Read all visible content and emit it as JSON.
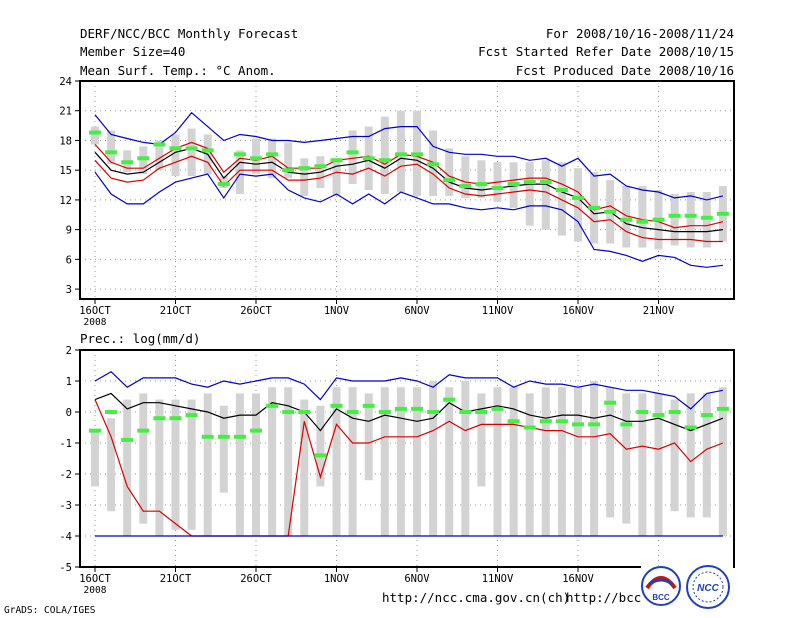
{
  "header": {
    "title": "DERF/NCC/BCC Monthly Forecast",
    "member_size": "Member Size=40",
    "variable": "Mean Surf. Temp.: °C Anom.",
    "period": "For 2008/10/16-2008/11/24",
    "start_date": "Fcst Started Refer Date 2008/10/15",
    "produced_date": "Fcst Produced Date 2008/10/16"
  },
  "footer": {
    "grads": "GrADS: COLA/IGES",
    "url_ncc": "http://ncc.cma.gov.cn(ch)",
    "url_bcc": "http://bcc.cma.gov.cn",
    "logo_bcc": "BCC",
    "logo_ncc": "NCC"
  },
  "colors": {
    "bar": "#d3d3d3",
    "mean": "#000000",
    "envelope_outer": "#0000cc",
    "envelope_inner": "#dd0000",
    "marker": "#44ee44"
  },
  "chart_data": [
    {
      "type": "line",
      "title": "",
      "ylabel": "Mean Surf. Temp.: °C Anom.",
      "ylim": [
        2,
        24
      ],
      "yticks": [
        "24",
        "21",
        "18",
        "15",
        "12",
        "9",
        "6",
        "3"
      ],
      "ytick_values": [
        24,
        21,
        18,
        15,
        12,
        9,
        6,
        3
      ],
      "x_labels": [
        "16OCT",
        "21OCT",
        "26OCT",
        "1NOV",
        "6NOV",
        "11NOV",
        "16NOV",
        "21NOV"
      ],
      "x_label_days": [
        1,
        6,
        11,
        16,
        21,
        26,
        31,
        36
      ],
      "x_sub_label": "2008",
      "days": 40,
      "bar_low": [
        17.6,
        15.6,
        14.8,
        14.6,
        15.0,
        14.4,
        14.4,
        14.6,
        13.2,
        12.6,
        14.6,
        14.2,
        14.2,
        12.4,
        13.2,
        12.4,
        13.6,
        13.0,
        12.6,
        12.8,
        12.4,
        12.4,
        12.4,
        12.2,
        12.2,
        11.8,
        11.2,
        9.4,
        9.0,
        8.4,
        7.8,
        7.6,
        7.6,
        7.2,
        7.2,
        7.0,
        7.4,
        7.2,
        7.2,
        7.8
      ],
      "bar_high": [
        19.4,
        19.0,
        17.0,
        17.4,
        18.0,
        18.6,
        19.2,
        18.6,
        14.4,
        17.0,
        18.2,
        18.2,
        17.8,
        16.2,
        16.4,
        16.2,
        19.0,
        19.4,
        20.4,
        21.0,
        21.0,
        19.0,
        17.2,
        16.4,
        16.0,
        15.8,
        15.8,
        15.8,
        16.0,
        15.8,
        15.2,
        14.8,
        14.0,
        13.4,
        13.4,
        13.0,
        12.6,
        12.8,
        12.8,
        13.4
      ],
      "marker": [
        18.8,
        16.8,
        15.8,
        16.2,
        17.6,
        17.2,
        17.2,
        17.0,
        13.6,
        16.6,
        16.2,
        16.6,
        15.0,
        15.2,
        15.4,
        16.0,
        16.8,
        16.2,
        16.0,
        16.6,
        16.6,
        15.6,
        14.0,
        13.4,
        13.6,
        13.2,
        13.6,
        13.8,
        13.8,
        13.0,
        12.2,
        11.2,
        10.8,
        10.0,
        9.8,
        10.0,
        10.4,
        10.4,
        10.2,
        10.6
      ],
      "series": [
        {
          "name": "envelope_max",
          "color": "#0000cc",
          "values": [
            20.6,
            18.6,
            18.2,
            17.8,
            17.6,
            18.8,
            20.8,
            19.4,
            18.0,
            18.6,
            18.4,
            18.0,
            18.0,
            17.8,
            18.0,
            18.2,
            18.4,
            18.4,
            19.2,
            19.4,
            19.4,
            17.4,
            16.8,
            16.6,
            16.6,
            16.4,
            16.4,
            16.0,
            16.2,
            15.4,
            16.2,
            14.4,
            14.6,
            13.4,
            13.0,
            12.8,
            12.2,
            12.4,
            12.0,
            12.4
          ]
        },
        {
          "name": "p75",
          "color": "#dd0000",
          "values": [
            17.6,
            15.8,
            15.2,
            15.2,
            16.2,
            17.2,
            17.8,
            17.2,
            14.8,
            16.2,
            16.0,
            16.4,
            15.2,
            15.2,
            15.2,
            16.0,
            16.2,
            16.4,
            15.6,
            16.6,
            16.4,
            15.8,
            14.4,
            13.8,
            13.6,
            13.8,
            14.0,
            14.2,
            14.2,
            13.6,
            12.8,
            11.0,
            11.4,
            10.4,
            10.0,
            9.8,
            9.2,
            9.4,
            9.4,
            9.8
          ]
        },
        {
          "name": "mean",
          "color": "#000000",
          "values": [
            16.8,
            15.0,
            14.6,
            14.8,
            15.8,
            16.8,
            17.2,
            16.6,
            14.2,
            15.8,
            15.6,
            15.8,
            14.8,
            14.6,
            14.8,
            15.4,
            15.6,
            16.0,
            15.2,
            16.2,
            16.0,
            15.2,
            13.8,
            13.2,
            13.0,
            13.2,
            13.4,
            13.6,
            13.6,
            12.8,
            12.2,
            10.6,
            10.8,
            9.6,
            9.2,
            9.0,
            8.8,
            8.8,
            8.8,
            9.0
          ]
        },
        {
          "name": "p25",
          "color": "#dd0000",
          "values": [
            16.0,
            14.2,
            13.8,
            14.0,
            15.2,
            15.8,
            16.4,
            15.8,
            13.4,
            15.0,
            15.0,
            15.0,
            14.0,
            14.0,
            14.2,
            14.8,
            14.6,
            15.2,
            14.4,
            15.4,
            15.6,
            14.6,
            13.2,
            12.6,
            12.4,
            12.6,
            12.8,
            13.0,
            12.8,
            12.0,
            11.2,
            9.8,
            10.0,
            8.8,
            8.2,
            8.0,
            8.0,
            8.0,
            7.8,
            7.8
          ]
        },
        {
          "name": "envelope_min",
          "color": "#0000cc",
          "values": [
            14.8,
            12.6,
            11.6,
            11.6,
            12.8,
            13.8,
            14.2,
            14.6,
            12.2,
            14.6,
            14.4,
            14.6,
            13.0,
            12.2,
            11.8,
            12.6,
            11.6,
            12.6,
            11.6,
            12.8,
            12.2,
            11.6,
            11.6,
            11.2,
            11.0,
            11.2,
            11.0,
            11.4,
            11.4,
            11.0,
            9.8,
            7.0,
            6.8,
            6.4,
            5.8,
            6.4,
            6.2,
            5.4,
            5.2,
            5.4
          ]
        }
      ]
    },
    {
      "type": "line",
      "title": "Prec.: log(mm/d)",
      "ylabel": "Prec.: log(mm/d)",
      "ylim": [
        -5,
        2
      ],
      "yticks": [
        "2",
        "1",
        "0",
        "-1",
        "-2",
        "-3",
        "-4",
        "-5"
      ],
      "ytick_values": [
        2,
        1,
        0,
        -1,
        -2,
        -3,
        -4,
        -5
      ],
      "x_labels": [
        "16OCT",
        "21OCT",
        "26OCT",
        "1NOV",
        "6NOV",
        "11NOV",
        "16NOV",
        "21NOV"
      ],
      "x_label_days": [
        1,
        6,
        11,
        16,
        21,
        26,
        31,
        36
      ],
      "x_sub_label": "2008",
      "days": 40,
      "bar_low": [
        -2.4,
        -3.2,
        -4.0,
        -3.6,
        -4.0,
        -3.8,
        -3.8,
        -4.0,
        -2.6,
        -4.0,
        -4.0,
        -4.0,
        -4.0,
        -4.0,
        -2.4,
        -4.0,
        -4.0,
        -2.2,
        -4.0,
        -4.0,
        -4.0,
        -4.0,
        -4.0,
        -4.0,
        -2.4,
        -4.0,
        -4.0,
        -4.0,
        -4.0,
        -4.0,
        -4.0,
        -4.0,
        -3.4,
        -3.6,
        -4.0,
        -4.0,
        -3.2,
        -3.4,
        -3.4,
        -4.0
      ],
      "bar_high": [
        -0.6,
        -0.2,
        0.4,
        0.6,
        0.4,
        0.4,
        0.4,
        0.6,
        0.2,
        0.6,
        0.6,
        0.8,
        0.8,
        0.4,
        0.2,
        0.8,
        0.8,
        0.6,
        0.8,
        0.8,
        0.8,
        1.0,
        0.8,
        1.0,
        0.6,
        0.8,
        0.8,
        0.6,
        0.8,
        0.8,
        0.8,
        1.0,
        0.8,
        0.6,
        0.6,
        0.6,
        0.4,
        0.6,
        0.6,
        0.8
      ],
      "marker": [
        -0.6,
        0.0,
        -0.9,
        -0.6,
        -0.2,
        -0.2,
        -0.1,
        -0.8,
        -0.8,
        -0.8,
        -0.6,
        0.2,
        0.0,
        0.0,
        -1.4,
        0.2,
        0.0,
        0.2,
        0.0,
        0.1,
        0.1,
        0.0,
        0.4,
        0.0,
        0.0,
        0.1,
        -0.3,
        -0.5,
        -0.3,
        -0.3,
        -0.4,
        -0.4,
        0.3,
        -0.4,
        0.0,
        -0.1,
        0.0,
        -0.5,
        -0.1,
        0.1
      ],
      "series": [
        {
          "name": "envelope_max",
          "color": "#0000cc",
          "values": [
            1.0,
            1.3,
            0.8,
            1.1,
            1.1,
            1.1,
            0.9,
            0.8,
            1.0,
            0.9,
            1.0,
            1.1,
            1.1,
            0.9,
            0.4,
            1.1,
            1.0,
            1.0,
            1.0,
            1.1,
            1.0,
            0.8,
            1.2,
            1.1,
            1.1,
            1.1,
            0.8,
            1.0,
            0.9,
            0.9,
            0.8,
            0.9,
            0.8,
            0.7,
            0.7,
            0.6,
            0.5,
            0.1,
            0.6,
            0.7
          ]
        },
        {
          "name": "mean",
          "color": "#000000",
          "values": [
            0.4,
            0.6,
            0.1,
            0.3,
            0.3,
            0.2,
            0.1,
            0.0,
            -0.2,
            -0.1,
            -0.1,
            0.3,
            0.2,
            0.0,
            -0.6,
            0.1,
            -0.2,
            -0.3,
            -0.1,
            -0.2,
            -0.3,
            -0.2,
            0.3,
            0.0,
            0.1,
            0.2,
            0.1,
            -0.1,
            -0.2,
            -0.1,
            -0.1,
            -0.2,
            -0.1,
            -0.3,
            -0.3,
            -0.2,
            -0.4,
            -0.6,
            -0.4,
            -0.2
          ]
        },
        {
          "name": "p25",
          "color": "#dd0000",
          "values": [
            0.4,
            -0.8,
            -2.4,
            -3.2,
            -3.2,
            -3.6,
            -4.0,
            -4.0,
            -4.0,
            -4.0,
            -4.0,
            -4.0,
            -4.0,
            -0.3,
            -2.1,
            -0.4,
            -1.0,
            -1.0,
            -0.8,
            -0.8,
            -0.8,
            -0.6,
            -0.3,
            -0.6,
            -0.4,
            -0.4,
            -0.4,
            -0.5,
            -0.6,
            -0.6,
            -0.8,
            -0.8,
            -0.7,
            -1.2,
            -1.1,
            -1.2,
            -1.0,
            -1.6,
            -1.2,
            -1.0
          ]
        },
        {
          "name": "min_floor",
          "color": "#0000cc",
          "values": [
            -4.0,
            -4.0,
            -4.0,
            -4.0,
            -4.0,
            -4.0,
            -4.0,
            -4.0,
            -4.0,
            -4.0,
            -4.0,
            -4.0,
            -4.0,
            -4.0,
            -4.0,
            -4.0,
            -4.0,
            -4.0,
            -4.0,
            -4.0,
            -4.0,
            -4.0,
            -4.0,
            -4.0,
            -4.0,
            -4.0,
            -4.0,
            -4.0,
            -4.0,
            -4.0,
            -4.0,
            -4.0,
            -4.0,
            -4.0,
            -4.0,
            -4.0,
            -4.0,
            -4.0,
            -4.0,
            -4.0
          ]
        }
      ]
    }
  ]
}
